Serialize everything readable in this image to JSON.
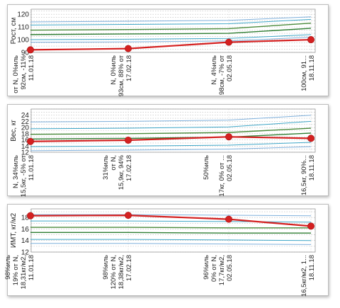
{
  "chart_data": [
    {
      "type": "line",
      "ylabel": "Рост, см",
      "ylim": [
        90,
        124
      ],
      "yticks": [
        90,
        100,
        110,
        120
      ],
      "x_dates": [
        "11.01.18",
        "17.02.18",
        "02.05.18",
        "18.11.18"
      ],
      "series": [
        {
          "name": "",
          "role": "patient",
          "color": "#d42020",
          "values": [
            92,
            93,
            98,
            100
          ]
        }
      ],
      "reference_curves": [
        {
          "color": "#7fb0dc",
          "values": [
            98,
            98.3,
            99,
            102
          ]
        },
        {
          "color": "#3fa7c8",
          "values": [
            100,
            100.4,
            101,
            104
          ]
        },
        {
          "color": "#2e7d32",
          "values": [
            104,
            104.5,
            105,
            109
          ]
        },
        {
          "color": "#4a8a3a",
          "values": [
            107.5,
            108,
            108.7,
            113
          ]
        },
        {
          "color": "#3fa7c8",
          "values": [
            111.5,
            112,
            112.6,
            116
          ]
        },
        {
          "color": "#7fb0dc",
          "values": [
            114,
            114.5,
            115.2,
            118
          ]
        }
      ],
      "point_labels": [
        [
          "11.01.18",
          "92см, -11%",
          "от N, 0%иль"
        ],
        [
          "17.02.18",
          "93см, 88% от",
          "N, 0%иль"
        ],
        [
          "02.05.18",
          "98см, -7% от",
          "N, 4%иль"
        ],
        [
          "18.11.18",
          "100см, 91..."
        ]
      ]
    },
    {
      "type": "line",
      "ylabel": "Вес, кг",
      "ylim": [
        12,
        26
      ],
      "yticks": [
        12,
        14,
        16,
        18,
        20,
        22,
        24
      ],
      "x_dates": [
        "11.01.18",
        "17.02.18",
        "02.05.18",
        "18.11.18"
      ],
      "series": [
        {
          "name": "",
          "role": "patient",
          "color": "#d42020",
          "values": [
            15.5,
            15.9,
            17,
            16.5
          ]
        }
      ],
      "reference_curves": [
        {
          "color": "#7fb0dc",
          "values": [
            12.5,
            12.7,
            13,
            13.8
          ]
        },
        {
          "color": "#3fa7c8",
          "values": [
            13.8,
            14,
            14.3,
            15.2
          ]
        },
        {
          "color": "#2e7d32",
          "values": [
            16.3,
            16.5,
            16.9,
            18.2
          ]
        },
        {
          "color": "#4a8a3a",
          "values": [
            17.8,
            18,
            18.4,
            19.8
          ]
        },
        {
          "color": "#3fa7c8",
          "values": [
            19.6,
            19.8,
            20.2,
            22
          ]
        },
        {
          "color": "#7fb0dc",
          "values": [
            21.8,
            22,
            22.4,
            24
          ]
        }
      ],
      "point_labels": [
        [
          "11.01.18",
          "15,5кг, -5% от",
          "N, 34%иль"
        ],
        [
          "17.02.18",
          "15,9кг, 94%",
          "от N,",
          "31%иль"
        ],
        [
          "02.05.18",
          "17кг, 0% от ...",
          "",
          "50%иль"
        ],
        [
          "18.11.18",
          "16,5кг, 90%..."
        ]
      ]
    },
    {
      "type": "line",
      "ylabel": "ИМТ, кг/м2",
      "ylim": [
        12,
        19.5
      ],
      "yticks": [
        12,
        14,
        16,
        18
      ],
      "x_dates": [
        "11.01.18",
        "17.02.18",
        "02.05.18",
        "18.11.18"
      ],
      "series": [
        {
          "name": "",
          "role": "patient",
          "color": "#d42020",
          "values": [
            18.31,
            18.38,
            17.7,
            16.5
          ]
        }
      ],
      "reference_curves": [
        {
          "color": "#7fb0dc",
          "values": [
            13.5,
            13.5,
            13.4,
            13.3
          ]
        },
        {
          "color": "#3fa7c8",
          "values": [
            14.2,
            14.2,
            14.1,
            14
          ]
        },
        {
          "color": "#2e7d32",
          "values": [
            15.4,
            15.4,
            15.3,
            15.3
          ]
        },
        {
          "color": "#4a8a3a",
          "values": [
            16.3,
            16.3,
            16.2,
            16.2
          ]
        },
        {
          "color": "#3fa7c8",
          "values": [
            17.4,
            17.4,
            17.3,
            17.2
          ]
        },
        {
          "color": "#7fb0dc",
          "values": [
            18.5,
            18.5,
            18.4,
            18.3
          ]
        }
      ],
      "point_labels": [
        [
          "11.01.18",
          "18,31кг/м2,",
          "19% от N,",
          "98%иль"
        ],
        [
          "17.02.18",
          "18,38кг/м2,",
          "120% от N,",
          "98%иль"
        ],
        [
          "02.05.18",
          "17,7кг/м2,",
          "0% от N,",
          "96%иль"
        ],
        [
          "18.11.18",
          "16,5кг/м2, 1..."
        ]
      ]
    }
  ]
}
